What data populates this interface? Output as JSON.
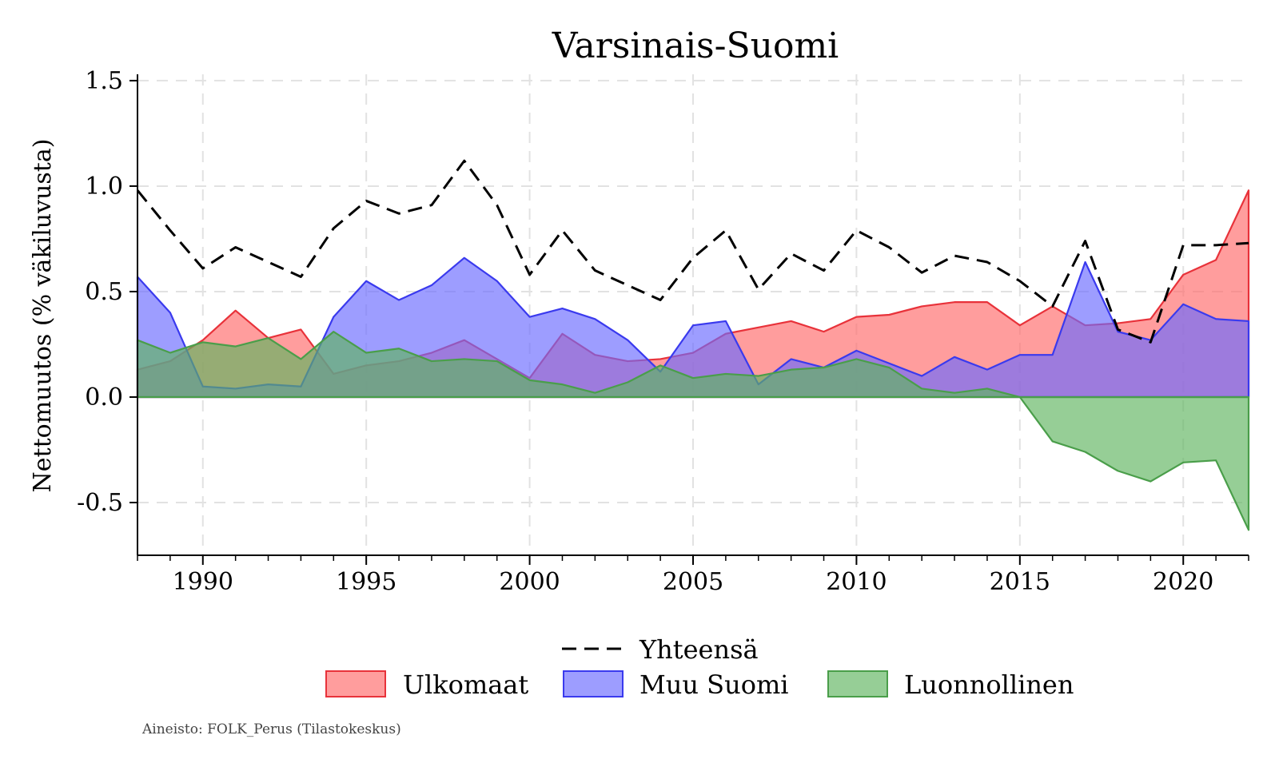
{
  "chart_data": {
    "type": "area",
    "title": "Varsinais-Suomi",
    "xlabel": "",
    "ylabel": "Nettomuutos (% väkiluvusta)",
    "xlim": [
      1988,
      2022
    ],
    "ylim": [
      -0.7,
      1.55
    ],
    "grid": true,
    "x_ticks": [
      1990,
      1995,
      2000,
      2005,
      2010,
      2015,
      2020
    ],
    "x_tick_labels": [
      "1990",
      "1995",
      "2000",
      "2005",
      "2010",
      "2015",
      "2020"
    ],
    "y_ticks": [
      -0.5,
      0.0,
      0.5,
      1.0,
      1.5
    ],
    "y_tick_labels": [
      "-0.5",
      "0.0",
      "0.5",
      "1.0",
      "1.5"
    ],
    "x": [
      1988,
      1989,
      1990,
      1991,
      1992,
      1993,
      1994,
      1995,
      1996,
      1997,
      1998,
      1999,
      2000,
      2001,
      2002,
      2003,
      2004,
      2005,
      2006,
      2007,
      2008,
      2009,
      2010,
      2011,
      2012,
      2013,
      2014,
      2015,
      2016,
      2017,
      2018,
      2019,
      2020,
      2021,
      2022
    ],
    "series": [
      {
        "name": "Ulkomaat",
        "kind": "area",
        "color": "#ff6b6b",
        "edge": "#e8323a",
        "values": [
          0.13,
          0.17,
          0.27,
          0.41,
          0.28,
          0.32,
          0.11,
          0.15,
          0.17,
          0.21,
          0.27,
          0.18,
          0.09,
          0.3,
          0.2,
          0.17,
          0.18,
          0.21,
          0.3,
          0.33,
          0.36,
          0.31,
          0.38,
          0.39,
          0.43,
          0.45,
          0.45,
          0.34,
          0.43,
          0.34,
          0.35,
          0.37,
          0.58,
          0.65,
          0.98
        ]
      },
      {
        "name": "Muu Suomi",
        "kind": "area",
        "color": "#6b6bff",
        "edge": "#3a3aee",
        "values": [
          0.57,
          0.4,
          0.05,
          0.04,
          0.06,
          0.05,
          0.38,
          0.55,
          0.46,
          0.53,
          0.66,
          0.55,
          0.38,
          0.42,
          0.37,
          0.27,
          0.12,
          0.34,
          0.36,
          0.06,
          0.18,
          0.14,
          0.22,
          0.16,
          0.1,
          0.19,
          0.13,
          0.2,
          0.2,
          0.64,
          0.31,
          0.27,
          0.44,
          0.37,
          0.36
        ]
      },
      {
        "name": "Luonnollinen",
        "kind": "area",
        "color": "#5fb55f",
        "edge": "#4a9e4a",
        "values": [
          0.27,
          0.21,
          0.26,
          0.24,
          0.28,
          0.18,
          0.31,
          0.21,
          0.23,
          0.17,
          0.18,
          0.17,
          0.08,
          0.06,
          0.02,
          0.07,
          0.15,
          0.09,
          0.11,
          0.1,
          0.13,
          0.14,
          0.18,
          0.14,
          0.04,
          0.02,
          0.04,
          0.0,
          -0.21,
          -0.26,
          -0.35,
          -0.4,
          -0.31,
          -0.3,
          -0.63
        ]
      },
      {
        "name": "Yhteensä",
        "kind": "line",
        "style": "dashed",
        "color": "#000000",
        "values": [
          0.98,
          0.79,
          0.61,
          0.71,
          0.64,
          0.57,
          0.8,
          0.93,
          0.87,
          0.91,
          1.12,
          0.91,
          0.58,
          0.79,
          0.6,
          0.53,
          0.46,
          0.66,
          0.79,
          0.51,
          0.68,
          0.6,
          0.79,
          0.71,
          0.59,
          0.67,
          0.64,
          0.55,
          0.43,
          0.74,
          0.32,
          0.26,
          0.72,
          0.72,
          0.73
        ]
      }
    ],
    "legend": {
      "placement": "bottom",
      "items": [
        "Yhteensä",
        "Ulkomaat",
        "Muu Suomi",
        "Luonnollinen"
      ]
    },
    "source_note": "Aineisto: FOLK_Perus (Tilastokeskus)"
  }
}
